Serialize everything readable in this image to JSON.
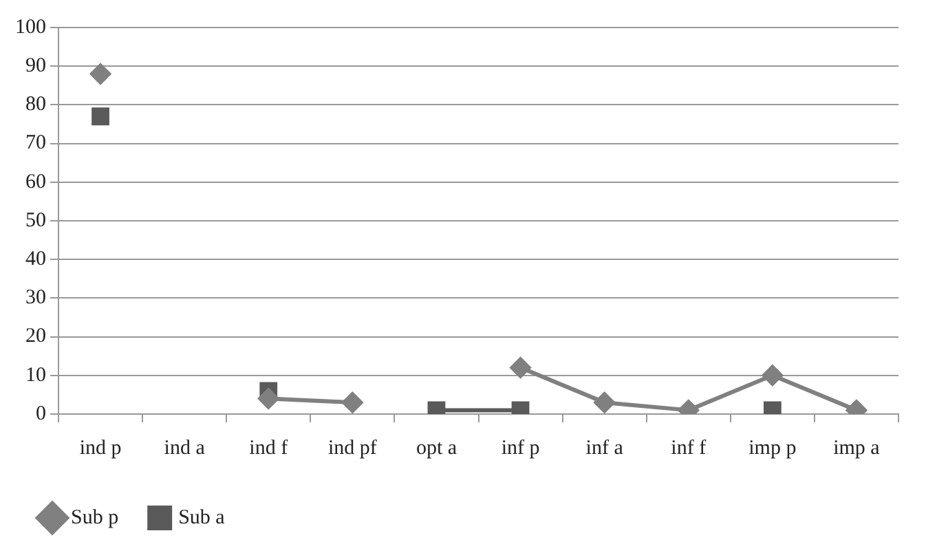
{
  "chart_data": {
    "type": "line",
    "categories": [
      "ind p",
      "ind a",
      "ind f",
      "ind pf",
      "opt a",
      "inf p",
      "inf a",
      "inf f",
      "imp p",
      "imp a"
    ],
    "series": [
      {
        "name": "Sub p",
        "color": "#808080",
        "marker": "diamond",
        "values": [
          88,
          null,
          4,
          3,
          null,
          12,
          3,
          1,
          10,
          1
        ]
      },
      {
        "name": "Sub a",
        "color": "#5a5a5a",
        "marker": "square",
        "values": [
          77,
          null,
          6,
          null,
          1,
          1,
          null,
          null,
          1,
          null
        ]
      }
    ],
    "ylim": [
      0,
      100
    ],
    "yticks": [
      0,
      10,
      20,
      30,
      40,
      50,
      60,
      70,
      80,
      90,
      100
    ],
    "grid": "y",
    "legend": "bottom left",
    "line_style": "solid"
  }
}
